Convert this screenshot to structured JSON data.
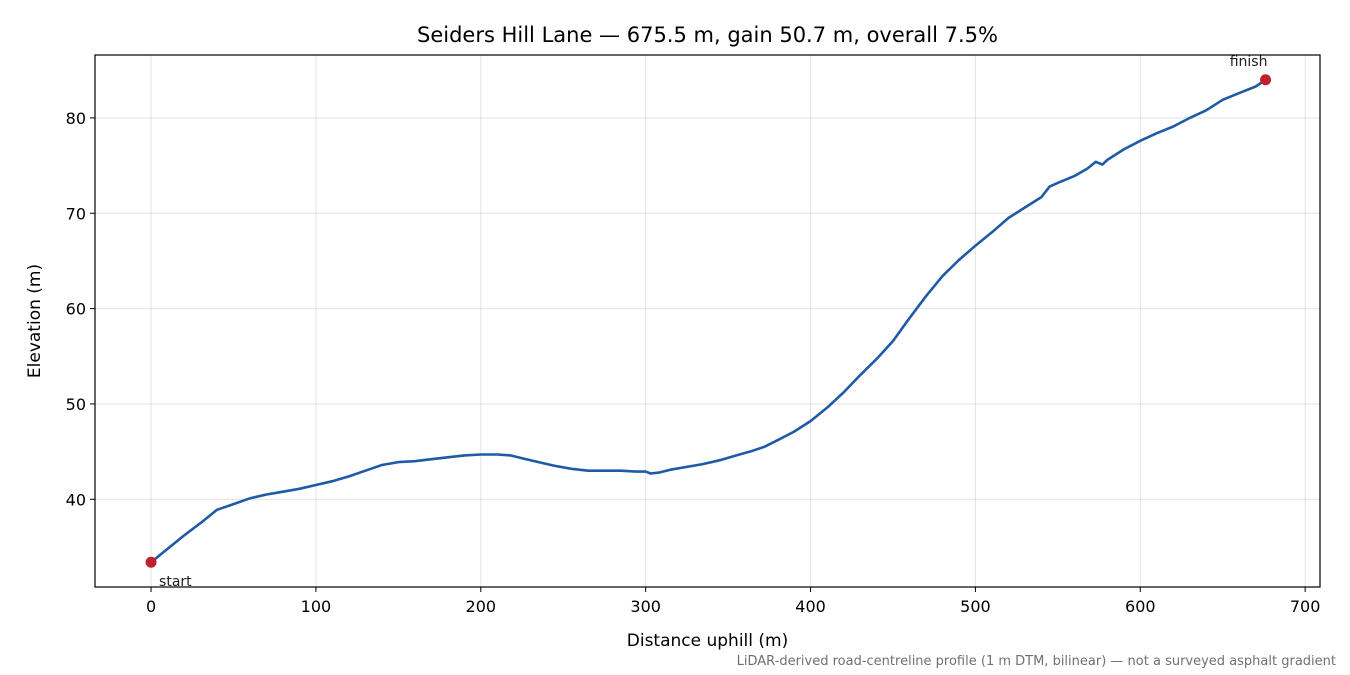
{
  "chart_data": {
    "type": "line",
    "title": "Seiders Hill Lane — 675.5 m, gain 50.7 m, overall 7.5%",
    "xlabel": "Distance uphill (m)",
    "ylabel": "Elevation (m)",
    "xlim": [
      -34,
      709
    ],
    "ylim": [
      30.8,
      86.6
    ],
    "xticks": [
      0,
      100,
      200,
      300,
      400,
      500,
      600,
      700
    ],
    "yticks": [
      40,
      50,
      60,
      70,
      80
    ],
    "grid": true,
    "line_color": "#1f5aa6",
    "marker_color": "#c0202e",
    "series": [
      {
        "x": [
          0,
          10,
          20,
          30,
          40,
          50,
          60,
          70,
          80,
          90,
          100,
          110,
          120,
          130,
          140,
          150,
          160,
          170,
          180,
          190,
          200,
          210,
          218,
          225,
          235,
          245,
          255,
          265,
          275,
          285,
          295,
          300,
          303,
          308,
          315,
          325,
          335,
          345,
          355,
          365,
          372,
          380,
          390,
          400,
          410,
          420,
          430,
          440,
          450,
          460,
          470,
          480,
          490,
          500,
          510,
          520,
          530,
          540,
          545,
          550,
          560,
          568,
          573,
          577,
          580,
          590,
          600,
          610,
          620,
          630,
          640,
          650,
          660,
          670,
          676
        ],
        "values": [
          33.4,
          34.8,
          36.2,
          37.5,
          38.9,
          39.5,
          40.1,
          40.5,
          40.8,
          41.1,
          41.5,
          41.9,
          42.4,
          43.0,
          43.6,
          43.9,
          44.0,
          44.2,
          44.4,
          44.6,
          44.7,
          44.7,
          44.6,
          44.3,
          43.9,
          43.5,
          43.2,
          43.0,
          43.0,
          43.0,
          42.9,
          42.9,
          42.7,
          42.8,
          43.1,
          43.4,
          43.7,
          44.1,
          44.6,
          45.1,
          45.5,
          46.2,
          47.1,
          48.2,
          49.6,
          51.2,
          53.0,
          54.7,
          56.6,
          59.0,
          61.3,
          63.4,
          65.1,
          66.6,
          68.0,
          69.5,
          70.6,
          71.7,
          72.8,
          73.2,
          73.9,
          74.7,
          75.4,
          75.1,
          75.6,
          76.7,
          77.6,
          78.4,
          79.1,
          80.0,
          80.8,
          81.9,
          82.6,
          83.3,
          84.0
        ]
      }
    ],
    "annotations": [
      {
        "label": "start",
        "x": 0,
        "y": 33.4
      },
      {
        "label": "finish",
        "x": 676,
        "y": 84.0
      }
    ]
  },
  "footnote": "LiDAR-derived road-centreline profile (1 m DTM, bilinear) — not a surveyed asphalt gradient"
}
